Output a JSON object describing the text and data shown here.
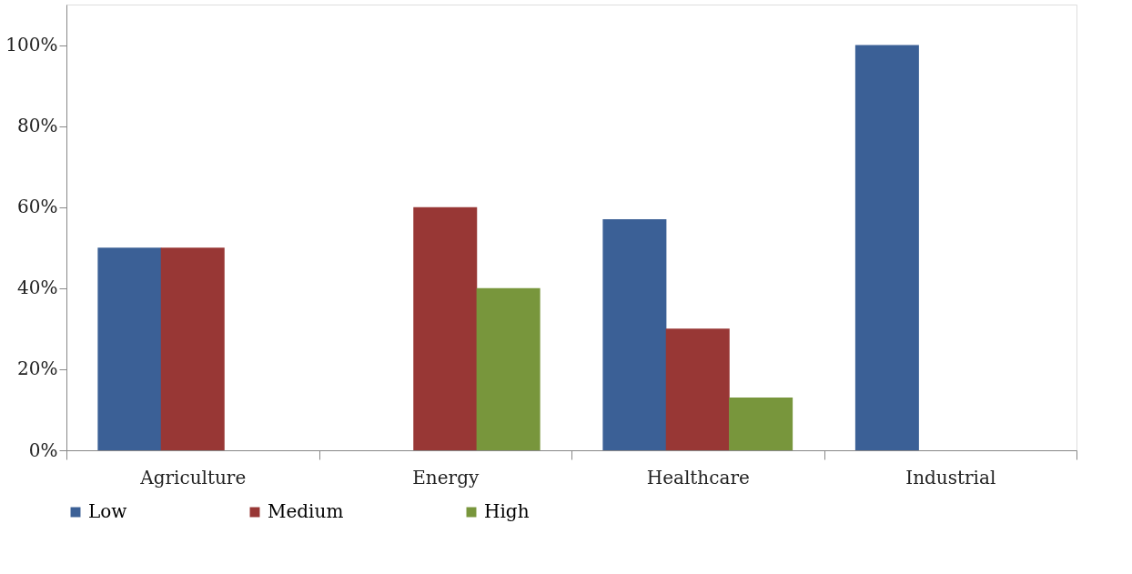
{
  "chart_data": {
    "type": "bar",
    "categories": [
      "Agriculture",
      "Energy",
      "Healthcare",
      "Industrial"
    ],
    "series": [
      {
        "name": "Low",
        "color": "#3b6096",
        "values": [
          50,
          null,
          57,
          100
        ]
      },
      {
        "name": "Medium",
        "color": "#983735",
        "values": [
          50,
          60,
          30,
          null
        ]
      },
      {
        "name": "High",
        "color": "#78963c",
        "values": [
          null,
          40,
          13,
          null
        ]
      }
    ],
    "ylim": [
      0,
      110
    ],
    "yticks": [
      {
        "value": 0,
        "label": "0%"
      },
      {
        "value": 20,
        "label": "20%"
      },
      {
        "value": 40,
        "label": "40%"
      },
      {
        "value": 60,
        "label": "60%"
      },
      {
        "value": 80,
        "label": "80%"
      },
      {
        "value": 100,
        "label": "100%"
      }
    ],
    "grid": false,
    "legend": "bottom"
  }
}
